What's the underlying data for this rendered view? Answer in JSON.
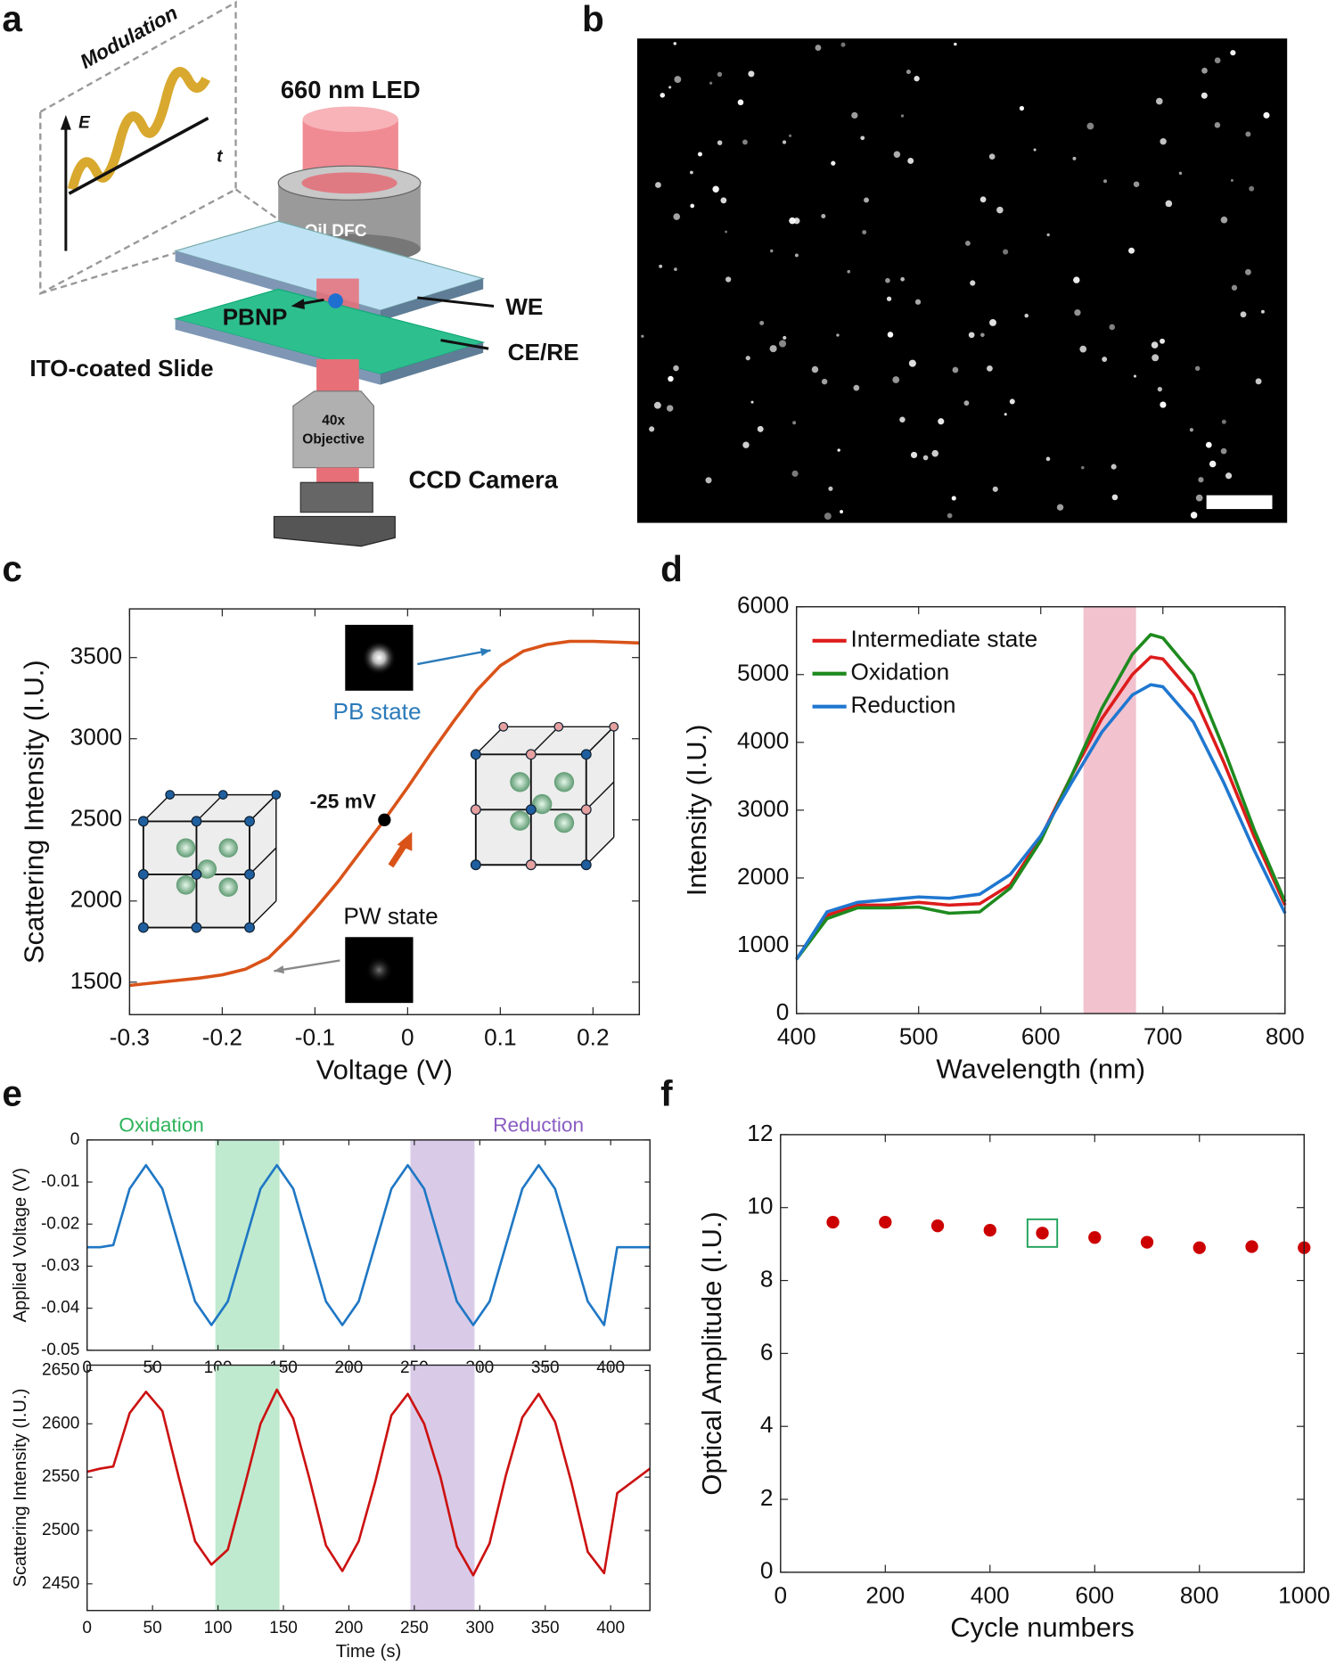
{
  "panel_labels": [
    "a",
    "b",
    "c",
    "d",
    "e",
    "f"
  ],
  "diagram": {
    "modulation": "Modulation",
    "e_axis": "E",
    "t_axis": "t",
    "led": "660 nm LED",
    "dfc": "Oil DFC",
    "we": "WE",
    "pbnp": "PBNP",
    "ce_re": "CE/RE",
    "slide": "ITO-coated Slide",
    "objective_power": "40x",
    "objective": "Objective",
    "camera": "CCD Camera"
  },
  "chart_data": [
    {
      "type": "line",
      "x_label": "Voltage (V)",
      "y_label": "Scattering Intensity (I.U.)",
      "xlim": [
        -0.3,
        0.25
      ],
      "xticks": [
        -0.3,
        -0.2,
        -0.1,
        0,
        0.1,
        0.2
      ],
      "ylim": [
        1300,
        3800
      ],
      "yticks": [
        1500,
        2000,
        2500,
        3000,
        3500
      ],
      "x": [
        -0.3,
        -0.275,
        -0.25,
        -0.225,
        -0.2,
        -0.175,
        -0.15,
        -0.125,
        -0.1,
        -0.075,
        -0.05,
        -0.025,
        0,
        0.025,
        0.05,
        0.075,
        0.1,
        0.125,
        0.15,
        0.175,
        0.2,
        0.225,
        0.25
      ],
      "series": [
        {
          "color": "#d95319",
          "values": [
            1480,
            1495,
            1510,
            1525,
            1545,
            1580,
            1650,
            1790,
            1950,
            2120,
            2310,
            2500,
            2700,
            2910,
            3110,
            3300,
            3450,
            3540,
            3580,
            3600,
            3600,
            3595,
            3590
          ]
        }
      ],
      "marker": {
        "x": -0.025,
        "y": 2500,
        "label": "-25 mV"
      },
      "annotations": [
        {
          "text": "PB state",
          "color": "#2b7bba"
        },
        {
          "text": "PW state",
          "color": "#111111"
        }
      ]
    },
    {
      "type": "line",
      "x_label": "Wavelength (nm)",
      "y_label": "Intensity (I.U.)",
      "xlim": [
        400,
        800
      ],
      "xticks": [
        400,
        500,
        600,
        700,
        800
      ],
      "ylim": [
        0,
        6000
      ],
      "yticks": [
        0,
        1000,
        2000,
        3000,
        4000,
        5000,
        6000
      ],
      "legend": "upper left",
      "band": [
        635,
        678
      ],
      "band_color": "#f2c2cf",
      "x": [
        400,
        425,
        450,
        475,
        500,
        525,
        550,
        575,
        600,
        625,
        650,
        675,
        690,
        700,
        725,
        750,
        775,
        800
      ],
      "series": [
        {
          "name": "Intermediate state",
          "color": "#dd1c1c",
          "values": [
            800,
            1450,
            1600,
            1600,
            1640,
            1600,
            1620,
            1900,
            2600,
            3500,
            4350,
            5000,
            5260,
            5230,
            4700,
            3700,
            2600,
            1600
          ]
        },
        {
          "name": "Oxidation",
          "color": "#1e8a1e",
          "values": [
            800,
            1400,
            1560,
            1560,
            1570,
            1480,
            1500,
            1850,
            2550,
            3500,
            4500,
            5300,
            5590,
            5540,
            5000,
            3900,
            2700,
            1650
          ]
        },
        {
          "name": "Reduction",
          "color": "#1f77d0",
          "values": [
            800,
            1500,
            1640,
            1680,
            1720,
            1700,
            1760,
            2050,
            2620,
            3400,
            4150,
            4700,
            4850,
            4820,
            4300,
            3400,
            2400,
            1480
          ]
        }
      ]
    },
    {
      "type": "line",
      "x_label": "Time (s)",
      "xlim": [
        0,
        430
      ],
      "xticks": [
        0,
        50,
        100,
        150,
        200,
        250,
        300,
        350,
        400
      ],
      "bands": [
        {
          "label": "Oxidation",
          "range": [
            98,
            147
          ],
          "color": "#bfead0",
          "text_color": "#2db35a"
        },
        {
          "label": "Reduction",
          "range": [
            247,
            296
          ],
          "color": "#d9cbe8",
          "text_color": "#8a5cc2"
        }
      ],
      "x": [
        0,
        10,
        20,
        32.5,
        45,
        57.5,
        70,
        82.5,
        95,
        107.5,
        120,
        132.5,
        145,
        157.5,
        170,
        182.5,
        195,
        207.5,
        220,
        232.5,
        245,
        257.5,
        270,
        282.5,
        295,
        307.5,
        320,
        332.5,
        345,
        357.5,
        370,
        382.5,
        395,
        405,
        430
      ],
      "subplots": [
        {
          "y_label": "Applied Voltage (V)",
          "ylim": [
            -0.05,
            0
          ],
          "yticks": [
            -0.05,
            -0.04,
            -0.03,
            -0.02,
            -0.01,
            0
          ],
          "color": "#1f77c4",
          "values": [
            -0.0255,
            -0.0255,
            -0.025,
            -0.0116,
            -0.006,
            -0.0116,
            -0.025,
            -0.0384,
            -0.044,
            -0.0384,
            -0.025,
            -0.0116,
            -0.006,
            -0.0116,
            -0.025,
            -0.0384,
            -0.044,
            -0.0384,
            -0.025,
            -0.0116,
            -0.006,
            -0.0116,
            -0.025,
            -0.0384,
            -0.044,
            -0.0384,
            -0.025,
            -0.0116,
            -0.006,
            -0.0116,
            -0.025,
            -0.0384,
            -0.044,
            -0.0255,
            -0.0255
          ]
        },
        {
          "y_label": "Scattering Intensity (I.U.)",
          "ylim": [
            2425,
            2655
          ],
          "yticks": [
            2450,
            2500,
            2550,
            2600,
            2650
          ],
          "color": "#cc1111",
          "values": [
            2555,
            2558,
            2560,
            2610,
            2630,
            2612,
            2550,
            2490,
            2468,
            2482,
            2540,
            2600,
            2632,
            2605,
            2548,
            2486,
            2462,
            2490,
            2545,
            2608,
            2628,
            2600,
            2550,
            2485,
            2458,
            2488,
            2552,
            2606,
            2628,
            2602,
            2545,
            2480,
            2460,
            2535,
            2558
          ]
        }
      ]
    },
    {
      "type": "scatter",
      "x_label": "Cycle numbers",
      "y_label": "Optical Amplitude (I.U.)",
      "xlim": [
        0,
        1000
      ],
      "xticks": [
        0,
        200,
        400,
        600,
        800,
        1000
      ],
      "ylim": [
        0,
        12
      ],
      "yticks": [
        0,
        2,
        4,
        6,
        8,
        10,
        12
      ],
      "x": [
        100,
        200,
        300,
        400,
        500,
        600,
        700,
        800,
        900,
        1000
      ],
      "values": [
        9.6,
        9.6,
        9.5,
        9.38,
        9.3,
        9.18,
        9.05,
        8.9,
        8.93,
        8.9
      ],
      "color": "#cc0000",
      "highlight_x": 500,
      "highlight_color": "#21a35a"
    }
  ]
}
